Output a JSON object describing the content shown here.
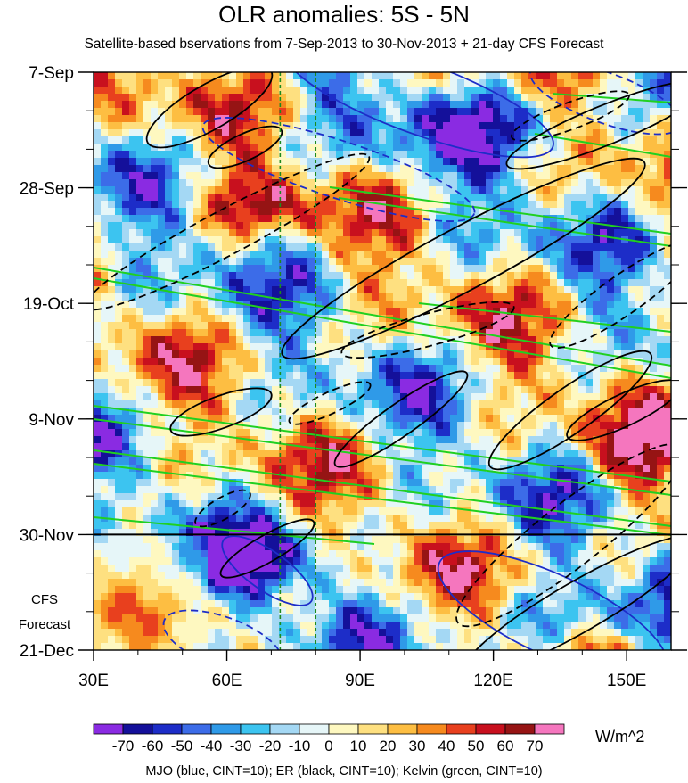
{
  "title": "OLR anomalies: 5S - 5N",
  "subtitle": "Satellite-based bservations from 7-Sep-2013 to 30-Nov-2013 + 21-day CFS Forecast",
  "footer": "MJO (blue, CINT=10); ER (black, CINT=10); Kelvin (green, CINT=10)",
  "forecast_label": [
    "CFS",
    "Forecast"
  ],
  "colorbar_unit": "W/m^2",
  "chart_data": {
    "type": "heatmap",
    "title": "OLR anomalies: 5S - 5N",
    "subtitle": "Satellite-based bservations from 7-Sep-2013 to 30-Nov-2013 + 21-day CFS Forecast",
    "x_tick_labels": [
      "30E",
      "60E",
      "90E",
      "120E",
      "150E"
    ],
    "x_tick_values": [
      30,
      60,
      90,
      120,
      150
    ],
    "xlim": [
      30,
      160
    ],
    "y_tick_labels": [
      "7-Sep",
      "28-Sep",
      "19-Oct",
      "9-Nov",
      "30-Nov",
      "21-Dec"
    ],
    "y_tick_values": [
      "2013-09-07",
      "2013-09-28",
      "2013-10-19",
      "2013-11-09",
      "2013-11-30",
      "2013-12-21"
    ],
    "ylim": [
      "2013-09-07",
      "2013-12-21"
    ],
    "observation_end": "2013-11-30",
    "reference_longitudes": [
      72,
      80
    ],
    "colorbar": {
      "labels": [
        "-70",
        "-60",
        "-50",
        "-40",
        "-30",
        "-20",
        "-10",
        "0",
        "10",
        "20",
        "30",
        "40",
        "50",
        "60",
        "70"
      ],
      "colors": [
        "#8a2be2",
        "#14109a",
        "#1d2dc8",
        "#3c6ce8",
        "#2f9ae8",
        "#3cc4f0",
        "#a4d8f4",
        "#e6f6f8",
        "#fef8c0",
        "#fee080",
        "#fdbe42",
        "#f68a1e",
        "#e8401e",
        "#c8101e",
        "#961414",
        "#f576be"
      ],
      "unit": "W/m^2"
    },
    "overlay_series": [
      {
        "name": "MJO",
        "color": "#1d2dc8"
      },
      {
        "name": "ER",
        "color": "#000000"
      },
      {
        "name": "Kelvin",
        "color": "#20d020"
      }
    ]
  }
}
